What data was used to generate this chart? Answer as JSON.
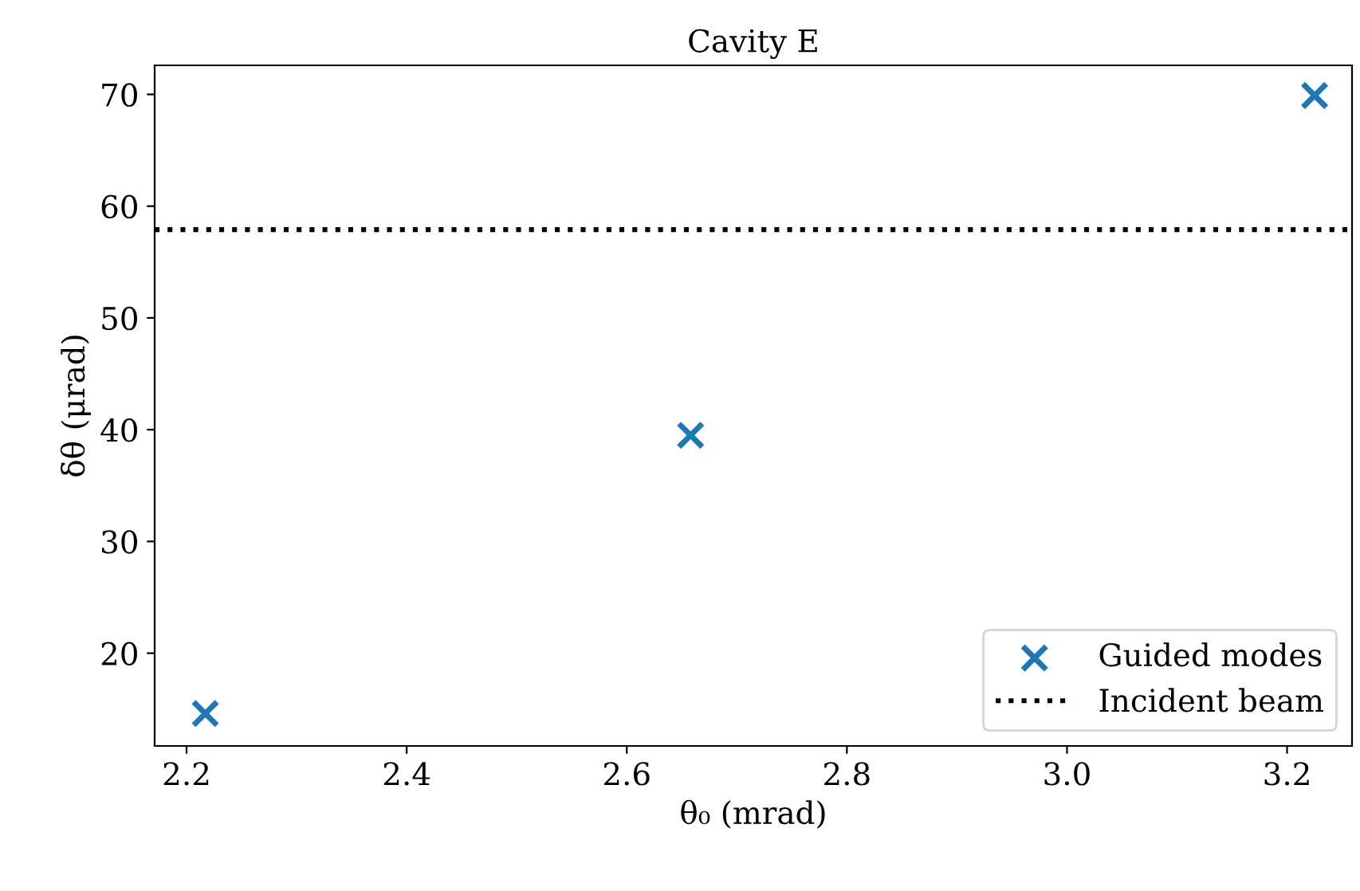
{
  "chart_data": {
    "type": "scatter",
    "title": "Cavity E",
    "xlabel": "θ₀ (mrad)",
    "ylabel": "δθ (μrad)",
    "x": [
      2.217,
      2.658,
      3.225
    ],
    "series": [
      {
        "name": "Guided modes",
        "color": "#1f77b4",
        "values": [
          14.6,
          39.5,
          69.9
        ]
      }
    ],
    "marker": "cross",
    "ref_lines": [
      {
        "axis": "y",
        "value": 57.9,
        "label": "Incident beam",
        "color": "#000000",
        "line_style": "dotted"
      }
    ],
    "xlim": [
      2.171,
      3.259
    ],
    "ylim": [
      11.7,
      72.6
    ],
    "xticks": [
      {
        "value": 2.2,
        "label": "2.2"
      },
      {
        "value": 2.4,
        "label": "2.4"
      },
      {
        "value": 2.6,
        "label": "2.6"
      },
      {
        "value": 2.8,
        "label": "2.8"
      },
      {
        "value": 3.0,
        "label": "3.0"
      },
      {
        "value": 3.2,
        "label": "3.2"
      }
    ],
    "yticks": [
      20,
      30,
      40,
      50,
      60,
      70
    ],
    "grid": false,
    "legend": "bottom right"
  }
}
